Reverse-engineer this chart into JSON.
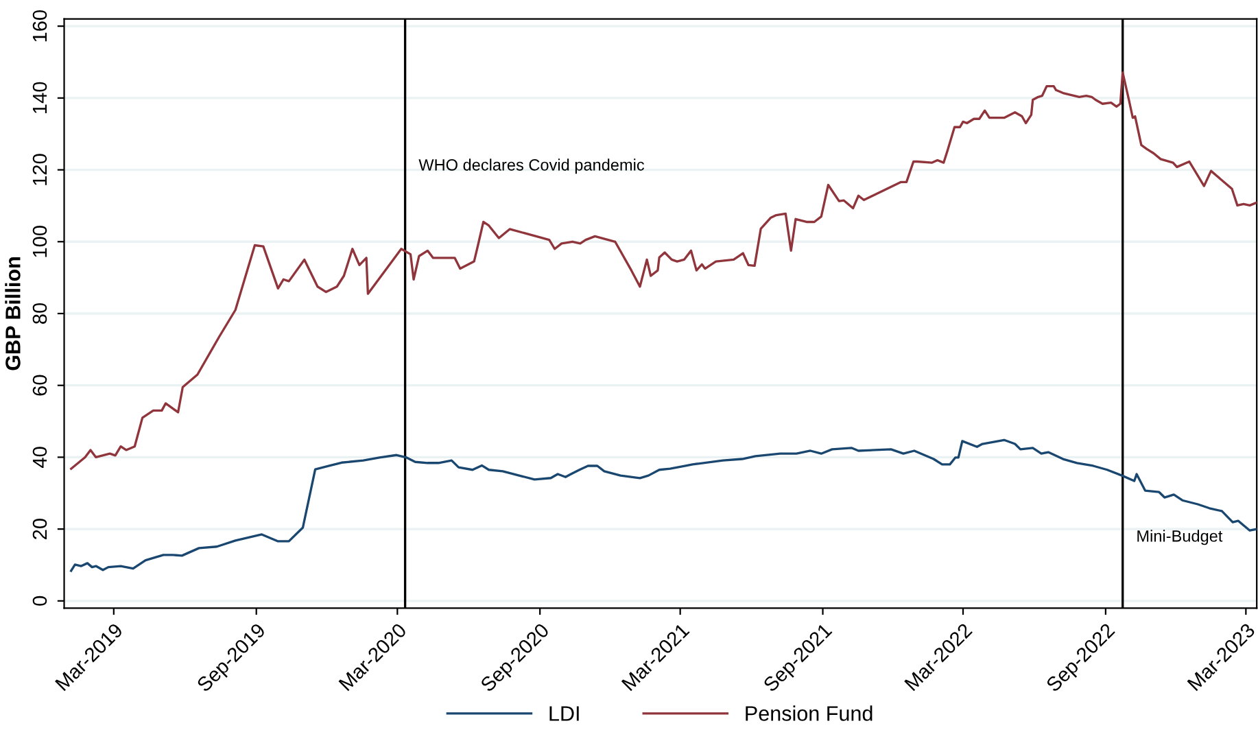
{
  "chart_data": {
    "type": "line",
    "ylabel": "GBP Billion",
    "xlim": [
      "2018-12-27",
      "2023-03-15"
    ],
    "ylim": [
      -2,
      162
    ],
    "xticks": [
      {
        "value": "2019-03-01",
        "label": "Mar-2019"
      },
      {
        "value": "2019-09-01",
        "label": "Sep-2019"
      },
      {
        "value": "2020-03-01",
        "label": "Mar-2020"
      },
      {
        "value": "2020-09-01",
        "label": "Sep-2020"
      },
      {
        "value": "2021-03-01",
        "label": "Mar-2021"
      },
      {
        "value": "2021-09-01",
        "label": "Sep-2021"
      },
      {
        "value": "2022-03-01",
        "label": "Mar-2022"
      },
      {
        "value": "2022-09-01",
        "label": "Sep-2022"
      },
      {
        "value": "2023-03-01",
        "label": "Mar-2023"
      }
    ],
    "yticks": [
      0,
      20,
      40,
      60,
      80,
      100,
      120,
      140,
      160
    ],
    "grid": "y",
    "legend": "bottom",
    "ref_lines": [
      {
        "axis": "x",
        "value": "2020-03-11",
        "label": "WHO declares Covid pandemic",
        "color": "#000000"
      },
      {
        "axis": "x",
        "value": "2022-09-23",
        "label": "Mini-Budget",
        "color": "#000000"
      }
    ],
    "series": [
      {
        "name": "LDI",
        "color": "#1a476f",
        "x": [
          "2019-01-05",
          "2019-01-10",
          "2019-01-18",
          "2019-01-26",
          "2019-02-01",
          "2019-02-06",
          "2019-02-15",
          "2019-02-22",
          "2019-03-10",
          "2019-03-26",
          "2019-04-11",
          "2019-05-04",
          "2019-05-16",
          "2019-05-28",
          "2019-06-19",
          "2019-07-12",
          "2019-08-05",
          "2019-09-08",
          "2019-09-29",
          "2019-10-13",
          "2019-10-31",
          "2019-11-16",
          "2019-12-04",
          "2019-12-20",
          "2020-01-17",
          "2020-02-07",
          "2020-02-29",
          "2020-03-13",
          "2020-03-24",
          "2020-04-09",
          "2020-04-23",
          "2020-05-10",
          "2020-05-19",
          "2020-06-06",
          "2020-06-18",
          "2020-06-27",
          "2020-07-15",
          "2020-08-25",
          "2020-09-15",
          "2020-09-24",
          "2020-10-04",
          "2020-10-11",
          "2020-10-22",
          "2020-11-02",
          "2020-11-14",
          "2020-11-23",
          "2020-12-14",
          "2021-01-08",
          "2021-01-19",
          "2021-02-02",
          "2021-02-16",
          "2021-03-08",
          "2021-03-17",
          "2021-04-25",
          "2021-05-20",
          "2021-06-06",
          "2021-07-08",
          "2021-07-29",
          "2021-08-16",
          "2021-08-30",
          "2021-09-13",
          "2021-10-08",
          "2021-10-17",
          "2021-11-28",
          "2021-12-14",
          "2021-12-28",
          "2022-01-22",
          "2022-02-02",
          "2022-02-12",
          "2022-02-19",
          "2022-02-23",
          "2022-02-28",
          "2022-03-19",
          "2022-03-26",
          "2022-04-23",
          "2022-05-07",
          "2022-05-14",
          "2022-05-30",
          "2022-06-10",
          "2022-06-19",
          "2022-07-08",
          "2022-07-26",
          "2022-08-16",
          "2022-09-03",
          "2022-09-22",
          "2022-10-08",
          "2022-10-11",
          "2022-10-22",
          "2022-11-09",
          "2022-11-16",
          "2022-11-28",
          "2022-12-09",
          "2022-12-29",
          "2023-01-13",
          "2023-01-29",
          "2023-02-12",
          "2023-02-19",
          "2023-03-06",
          "2023-03-15"
        ],
        "values": [
          8.4,
          10.1,
          9.7,
          10.5,
          9.4,
          9.7,
          8.6,
          9.4,
          9.7,
          9.0,
          11.3,
          12.8,
          12.8,
          12.6,
          14.7,
          15.1,
          16.8,
          18.5,
          16.6,
          16.6,
          20.4,
          36.6,
          37.6,
          38.5,
          39.1,
          39.9,
          40.6,
          39.9,
          38.7,
          38.4,
          38.4,
          39.1,
          37.2,
          36.5,
          37.7,
          36.5,
          36.1,
          33.8,
          34.2,
          35.3,
          34.5,
          35.3,
          36.5,
          37.6,
          37.6,
          36.1,
          34.9,
          34.2,
          34.9,
          36.5,
          36.8,
          37.6,
          38.0,
          39.1,
          39.5,
          40.3,
          41.0,
          41.0,
          41.8,
          41.0,
          42.2,
          42.6,
          41.8,
          42.2,
          41.0,
          41.8,
          39.5,
          38.0,
          38.0,
          39.9,
          39.9,
          44.5,
          42.9,
          43.7,
          44.8,
          43.7,
          42.2,
          42.6,
          41.0,
          41.4,
          39.5,
          38.4,
          37.6,
          36.5,
          34.9,
          33.4,
          35.3,
          30.7,
          30.3,
          28.8,
          29.6,
          28.0,
          26.9,
          25.8,
          25.0,
          21.9,
          22.3,
          19.6,
          20.0
        ]
      },
      {
        "name": "Pension Fund",
        "color": "#90353b",
        "x": [
          "2019-01-05",
          "2019-01-23",
          "2019-01-30",
          "2019-02-06",
          "2019-02-24",
          "2019-03-03",
          "2019-03-10",
          "2019-03-17",
          "2019-03-28",
          "2019-04-07",
          "2019-04-21",
          "2019-05-02",
          "2019-05-07",
          "2019-05-23",
          "2019-05-29",
          "2019-06-17",
          "2019-07-15",
          "2019-08-05",
          "2019-08-30",
          "2019-09-10",
          "2019-09-29",
          "2019-10-06",
          "2019-10-13",
          "2019-11-02",
          "2019-11-19",
          "2019-11-30",
          "2019-12-14",
          "2019-12-23",
          "2020-01-03",
          "2020-01-12",
          "2020-01-21",
          "2020-01-23",
          "2020-03-06",
          "2020-03-18",
          "2020-03-22",
          "2020-03-29",
          "2020-04-09",
          "2020-04-16",
          "2020-05-14",
          "2020-05-21",
          "2020-06-08",
          "2020-06-13",
          "2020-06-20",
          "2020-06-27",
          "2020-07-10",
          "2020-07-24",
          "2020-09-13",
          "2020-09-20",
          "2020-09-29",
          "2020-10-13",
          "2020-10-23",
          "2020-10-30",
          "2020-11-11",
          "2020-12-07",
          "2020-12-28",
          "2021-01-08",
          "2021-01-17",
          "2021-01-22",
          "2021-01-31",
          "2021-02-02",
          "2021-02-09",
          "2021-02-18",
          "2021-02-25",
          "2021-03-06",
          "2021-03-15",
          "2021-03-22",
          "2021-03-29",
          "2021-04-02",
          "2021-04-16",
          "2021-05-09",
          "2021-05-21",
          "2021-05-28",
          "2021-06-05",
          "2021-06-13",
          "2021-06-26",
          "2021-07-03",
          "2021-07-15",
          "2021-07-22",
          "2021-07-28",
          "2021-08-11",
          "2021-08-21",
          "2021-08-30",
          "2021-09-08",
          "2021-09-22",
          "2021-09-28",
          "2021-10-10",
          "2021-10-17",
          "2021-10-24",
          "2021-12-11",
          "2021-12-18",
          "2021-12-27",
          "2022-01-01",
          "2022-01-20",
          "2022-01-27",
          "2022-02-04",
          "2022-02-09",
          "2022-02-18",
          "2022-02-25",
          "2022-03-01",
          "2022-03-06",
          "2022-03-15",
          "2022-03-22",
          "2022-03-29",
          "2022-04-04",
          "2022-04-23",
          "2022-05-07",
          "2022-05-16",
          "2022-05-21",
          "2022-05-28",
          "2022-05-30",
          "2022-06-06",
          "2022-06-11",
          "2022-06-17",
          "2022-06-26",
          "2022-06-29",
          "2022-07-08",
          "2022-07-29",
          "2022-08-07",
          "2022-08-14",
          "2022-08-19",
          "2022-08-28",
          "2022-09-08",
          "2022-09-15",
          "2022-09-20",
          "2022-09-23",
          "2022-10-01",
          "2022-10-06",
          "2022-10-09",
          "2022-10-17",
          "2022-10-24",
          "2022-11-02",
          "2022-11-11",
          "2022-11-27",
          "2022-12-02",
          "2022-12-18",
          "2023-01-06",
          "2023-01-15",
          "2023-02-11",
          "2023-02-18",
          "2023-02-26",
          "2023-03-06",
          "2023-03-15"
        ],
        "values": [
          36.8,
          40.0,
          42.0,
          40.0,
          41.0,
          40.5,
          43.0,
          42.0,
          43.0,
          51.0,
          53.0,
          53.0,
          55.0,
          52.5,
          59.5,
          63.0,
          73.5,
          81.0,
          99.0,
          98.7,
          87.0,
          89.5,
          89.0,
          95.0,
          87.5,
          86.0,
          87.5,
          90.5,
          98.0,
          93.5,
          95.5,
          85.5,
          98.0,
          96.5,
          89.5,
          96.0,
          97.5,
          95.5,
          95.5,
          92.5,
          94.5,
          99.0,
          105.5,
          104.5,
          101.0,
          103.5,
          100.5,
          98.0,
          99.5,
          100.0,
          99.5,
          100.5,
          101.5,
          100.0,
          92.0,
          87.5,
          95.0,
          90.5,
          92.0,
          95.6,
          97.0,
          95.0,
          94.5,
          95.0,
          97.5,
          92.0,
          93.7,
          92.5,
          94.5,
          95.0,
          96.8,
          93.5,
          93.3,
          103.6,
          106.7,
          107.4,
          107.8,
          97.5,
          106.3,
          105.5,
          105.5,
          107.0,
          115.8,
          111.3,
          111.5,
          109.3,
          112.8,
          111.6,
          116.6,
          116.6,
          122.3,
          122.3,
          122.0,
          122.7,
          122.0,
          125.4,
          131.9,
          131.9,
          133.4,
          133.0,
          134.2,
          134.2,
          136.5,
          134.5,
          134.5,
          136.0,
          134.9,
          133.0,
          135.3,
          139.5,
          140.3,
          140.6,
          143.3,
          143.3,
          142.2,
          141.4,
          140.3,
          140.6,
          140.3,
          139.5,
          138.4,
          138.7,
          137.6,
          138.4,
          147.1,
          139.5,
          134.5,
          134.9,
          126.9,
          125.8,
          124.6,
          123.0,
          122.0,
          120.8,
          122.3,
          115.5,
          119.7,
          114.7,
          110.1,
          110.5,
          110.1,
          110.9
        ]
      }
    ]
  }
}
